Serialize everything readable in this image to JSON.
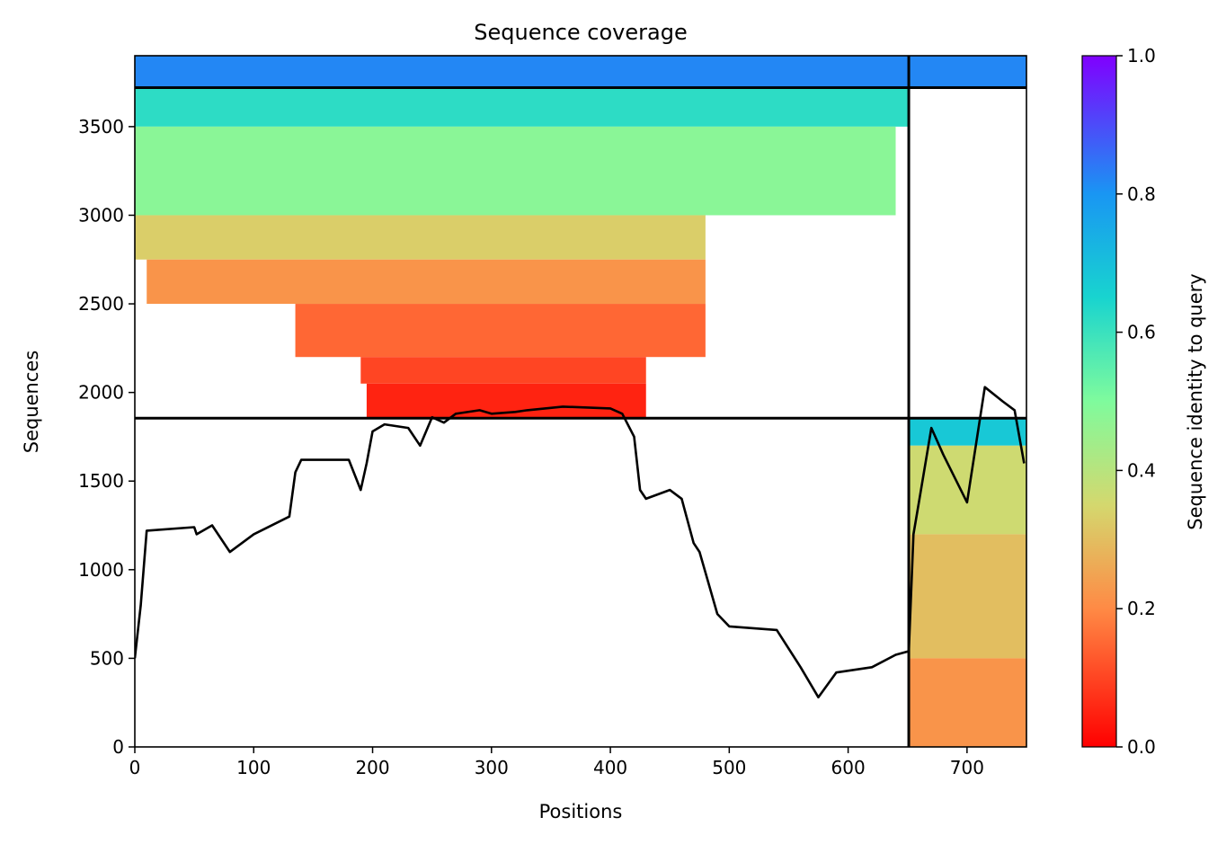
{
  "chart_data": {
    "type": "heatmap",
    "title": "Sequence coverage",
    "xlabel": "Positions",
    "ylabel": "Sequences",
    "xlim": [
      0,
      750
    ],
    "ylim": [
      0,
      3900
    ],
    "x_ticks": [
      0,
      100,
      200,
      300,
      400,
      500,
      600,
      700
    ],
    "y_ticks": [
      0,
      500,
      1000,
      1500,
      2000,
      2500,
      3000,
      3500
    ],
    "colorbar": {
      "label": "Sequence identity to query",
      "range": [
        0,
        1
      ],
      "ticks": [
        0.0,
        0.2,
        0.4,
        0.6,
        0.8,
        1.0
      ],
      "tick_labels": [
        "0.0",
        "0.2",
        "0.4",
        "0.6",
        "0.8",
        "1.0"
      ],
      "colormap": "rainbow_r"
    },
    "separators": {
      "vertical_x": 651,
      "horizontal_full_y": 3720,
      "horizontal_left_y": 1855,
      "horizontal_right_y": 1855
    },
    "coverage_bands": [
      {
        "y0": 3720,
        "y1": 3900,
        "identity": 0.82,
        "x0": 0,
        "x1": 750
      },
      {
        "y0": 3500,
        "y1": 3720,
        "identity": 0.62,
        "x0": 0,
        "x1": 651
      },
      {
        "y0": 3000,
        "y1": 3500,
        "identity": 0.48,
        "x0": 0,
        "x1": 640
      },
      {
        "y0": 2750,
        "y1": 3000,
        "identity": 0.33,
        "x0": 0,
        "x1": 480
      },
      {
        "y0": 2500,
        "y1": 2750,
        "identity": 0.22,
        "x0": 10,
        "x1": 480
      },
      {
        "y0": 2200,
        "y1": 2500,
        "identity": 0.15,
        "x0": 135,
        "x1": 480
      },
      {
        "y0": 2050,
        "y1": 2200,
        "identity": 0.1,
        "x0": 190,
        "x1": 430
      },
      {
        "y0": 1855,
        "y1": 2050,
        "identity": 0.05,
        "x0": 195,
        "x1": 430
      },
      {
        "y0": 1700,
        "y1": 1855,
        "identity": 0.68,
        "x0": 651,
        "x1": 750
      },
      {
        "y0": 1200,
        "y1": 1700,
        "identity": 0.36,
        "x0": 651,
        "x1": 750
      },
      {
        "y0": 500,
        "y1": 1200,
        "identity": 0.3,
        "x0": 651,
        "x1": 750
      },
      {
        "y0": 0,
        "y1": 500,
        "identity": 0.22,
        "x0": 651,
        "x1": 750
      }
    ],
    "coverage_line": {
      "x": [
        0,
        5,
        10,
        50,
        52,
        65,
        80,
        100,
        130,
        135,
        140,
        180,
        190,
        195,
        200,
        210,
        230,
        240,
        250,
        260,
        270,
        290,
        300,
        320,
        330,
        360,
        400,
        410,
        420,
        425,
        430,
        450,
        460,
        470,
        475,
        490,
        500,
        540,
        560,
        575,
        590,
        620,
        640,
        651,
        655,
        660,
        670,
        680,
        700,
        715,
        730,
        740,
        748
      ],
      "y": [
        500,
        800,
        1220,
        1240,
        1200,
        1250,
        1100,
        1200,
        1300,
        1550,
        1620,
        1620,
        1450,
        1600,
        1780,
        1820,
        1800,
        1700,
        1860,
        1830,
        1880,
        1900,
        1880,
        1890,
        1900,
        1920,
        1910,
        1880,
        1750,
        1450,
        1400,
        1450,
        1400,
        1150,
        1100,
        750,
        680,
        660,
        450,
        280,
        420,
        450,
        520,
        540,
        1200,
        1400,
        1800,
        1650,
        1380,
        2030,
        1950,
        1900,
        1600
      ]
    }
  }
}
